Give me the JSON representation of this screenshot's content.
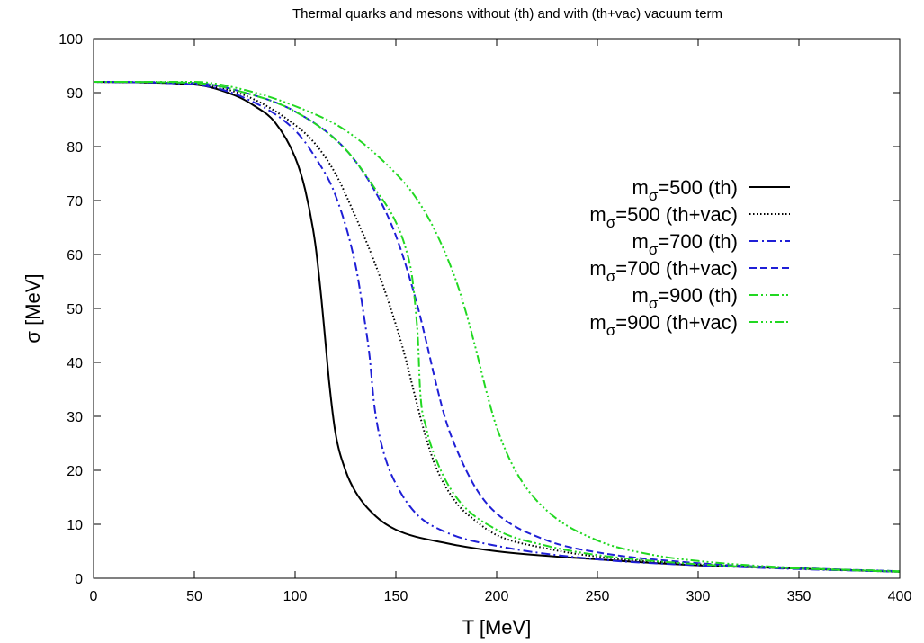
{
  "chart_data": {
    "type": "line",
    "title": "Thermal quarks and mesons without (th) and with (th+vac) vacuum term",
    "xlabel": "T [MeV]",
    "ylabel": "σ [MeV]",
    "xlim": [
      0,
      400
    ],
    "ylim": [
      0,
      100
    ],
    "xticks": [
      "0",
      "50",
      "100",
      "150",
      "200",
      "250",
      "300",
      "350",
      "400"
    ],
    "yticks": [
      "0",
      "10",
      "20",
      "30",
      "40",
      "50",
      "60",
      "70",
      "80",
      "90",
      "100"
    ],
    "grid": false,
    "legend_position": "right",
    "series": [
      {
        "name": "m_σ=500 (th)",
        "legend_base": "m",
        "legend_sub": "σ",
        "legend_rest": "=500 (th)",
        "color": "#000000",
        "dash": "solid",
        "x": [
          0,
          50,
          70,
          80,
          90,
          100,
          105,
          110,
          113,
          115,
          117,
          120,
          125,
          130,
          140,
          150,
          175,
          200,
          250,
          300,
          350,
          400
        ],
        "y": [
          92,
          91.5,
          89.5,
          87.5,
          84.5,
          78,
          72,
          62,
          52,
          44,
          36,
          27,
          20,
          16,
          11.5,
          9,
          6.5,
          5,
          3.5,
          2.4,
          1.8,
          1.2
        ]
      },
      {
        "name": "m_σ=500 (th+vac)",
        "legend_base": "m",
        "legend_sub": "σ",
        "legend_rest": "=500 (th+vac)",
        "color": "#000000",
        "dash": "dotted",
        "x": [
          0,
          50,
          75,
          100,
          110,
          120,
          130,
          140,
          150,
          155,
          160,
          165,
          170,
          180,
          190,
          200,
          225,
          250,
          300,
          350,
          400
        ],
        "y": [
          92,
          91.5,
          89.5,
          84,
          80.5,
          75,
          67,
          58,
          47,
          40.5,
          33,
          26,
          20.5,
          14,
          10.5,
          8,
          5.5,
          4,
          2.6,
          1.8,
          1.2
        ]
      },
      {
        "name": "m_σ=700 (th)",
        "legend_base": "m",
        "legend_sub": "σ",
        "legend_rest": "=700 (th)",
        "color": "#1f1fd6",
        "dash": "dashdot",
        "x": [
          0,
          50,
          75,
          100,
          110,
          120,
          130,
          134,
          137,
          139,
          141,
          145,
          150,
          160,
          175,
          200,
          250,
          300,
          350,
          400
        ],
        "y": [
          92,
          91.5,
          89,
          83,
          78,
          71,
          58,
          49,
          41,
          33,
          28,
          22,
          17.5,
          12,
          8.5,
          6,
          3.5,
          2.4,
          1.7,
          1.2
        ]
      },
      {
        "name": "m_σ=700 (th+vac)",
        "legend_base": "m",
        "legend_sub": "σ",
        "legend_rest": "=700 (th+vac)",
        "color": "#1f1fd6",
        "dash": "dashed",
        "x": [
          0,
          50,
          75,
          100,
          125,
          140,
          150,
          160,
          165,
          170,
          175,
          180,
          190,
          200,
          225,
          250,
          300,
          350,
          400
        ],
        "y": [
          92,
          91.8,
          90,
          86.5,
          79.5,
          71.5,
          63.5,
          51.5,
          44,
          36,
          29,
          24,
          16.5,
          12,
          7,
          4.8,
          2.8,
          1.9,
          1.3
        ]
      },
      {
        "name": "m_σ=900 (th)",
        "legend_base": "m",
        "legend_sub": "σ",
        "legend_rest": "=900 (th)",
        "color": "#22d822",
        "dash": "dashdotdot",
        "x": [
          0,
          50,
          75,
          100,
          125,
          140,
          150,
          155,
          158,
          160,
          161,
          162,
          165,
          170,
          180,
          200,
          225,
          250,
          300,
          350,
          400
        ],
        "y": [
          92,
          91.8,
          90,
          86.5,
          79.5,
          72,
          66,
          61,
          56,
          49,
          44,
          35,
          28,
          22,
          15,
          9,
          6,
          4.3,
          2.6,
          1.8,
          1.2
        ]
      },
      {
        "name": "m_σ=900 (th+vac)",
        "legend_base": "m",
        "legend_sub": "σ",
        "legend_rest": "=900 (th+vac)",
        "color": "#22d822",
        "dash": "dashdotdotdot",
        "x": [
          0,
          50,
          75,
          100,
          125,
          150,
          160,
          170,
          180,
          185,
          190,
          195,
          200,
          210,
          225,
          250,
          275,
          300,
          350,
          400
        ],
        "y": [
          92,
          92,
          90.5,
          87.5,
          83,
          75,
          70.5,
          64,
          55,
          49,
          42,
          34.5,
          28,
          19.5,
          12.5,
          7,
          4.5,
          3.2,
          1.9,
          1.3
        ]
      }
    ]
  }
}
